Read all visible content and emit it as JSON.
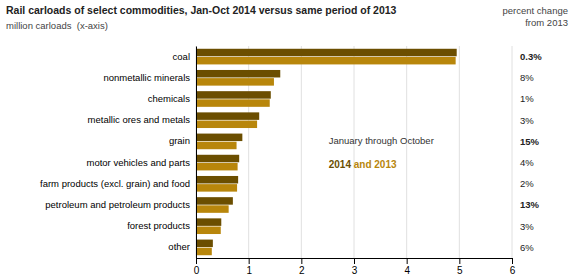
{
  "chart_data": {
    "type": "bar",
    "orientation": "horizontal",
    "title": "Rail carloads of select commodities, Jan-Oct 2014 versus same period of 2013",
    "subtitle": "million carloads  (x-axis)",
    "categories": [
      "coal",
      "nonmetallic minerals",
      "chemicals",
      "metallic ores and metals",
      "grain",
      "motor vehicles and parts",
      "farm products (excl. grain) and food",
      "petroleum and petroleum products",
      "forest products",
      "other"
    ],
    "series": [
      {
        "name": "2014",
        "color": "#6b4e00",
        "values": [
          4.95,
          1.6,
          1.42,
          1.2,
          0.88,
          0.82,
          0.8,
          0.7,
          0.48,
          0.32
        ]
      },
      {
        "name": "2013",
        "color": "#b8860b",
        "values": [
          4.93,
          1.48,
          1.4,
          1.16,
          0.77,
          0.79,
          0.78,
          0.62,
          0.47,
          0.3
        ]
      }
    ],
    "percent_change": {
      "title": [
        "percent change",
        "from 2013"
      ],
      "values": [
        0.3,
        8,
        1,
        3,
        15,
        4,
        2,
        13,
        3,
        6
      ],
      "value_labels": [
        "0.3%",
        "8%",
        "1%",
        "3%",
        "15%",
        "4%",
        "2%",
        "13%",
        "3%",
        "6%"
      ],
      "bold": [
        true,
        false,
        false,
        false,
        true,
        false,
        false,
        true,
        false,
        false
      ]
    },
    "annotations": [
      "January through October",
      " and "
    ],
    "xlim": [
      0,
      6
    ],
    "xticks": [
      0,
      1,
      2,
      3,
      4,
      5,
      6
    ],
    "grid": true
  }
}
